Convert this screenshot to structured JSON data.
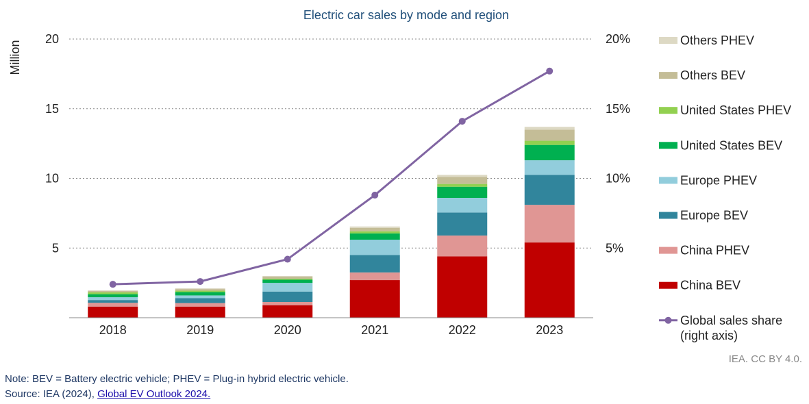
{
  "chart_data": {
    "type": "bar",
    "title": "Electric car sales by mode and region",
    "ylabel": "Million",
    "ylim": [
      0,
      20
    ],
    "y_ticks": [
      "5",
      "10",
      "15",
      "20"
    ],
    "y2_ticks": [
      "5%",
      "10%",
      "15%",
      "20%"
    ],
    "y2lim": [
      0,
      20
    ],
    "categories": [
      "2018",
      "2019",
      "2020",
      "2021",
      "2022",
      "2023"
    ],
    "stacked": true,
    "grid": "dotted horizontal",
    "legend_position": "right",
    "series": [
      {
        "name": "China BEV",
        "color": "#c00000",
        "values": [
          0.8,
          0.8,
          0.9,
          2.7,
          4.4,
          5.4
        ]
      },
      {
        "name": "China PHEV",
        "color": "#e09694",
        "values": [
          0.27,
          0.25,
          0.23,
          0.55,
          1.5,
          2.7
        ]
      },
      {
        "name": "Europe BEV",
        "color": "#31859c",
        "values": [
          0.2,
          0.35,
          0.75,
          1.25,
          1.65,
          2.15
        ]
      },
      {
        "name": "Europe PHEV",
        "color": "#92cddc",
        "values": [
          0.2,
          0.2,
          0.62,
          1.1,
          1.05,
          1.05
        ]
      },
      {
        "name": "United States BEV",
        "color": "#00b050",
        "values": [
          0.22,
          0.24,
          0.23,
          0.45,
          0.8,
          1.1
        ]
      },
      {
        "name": "United States PHEV",
        "color": "#92d050",
        "values": [
          0.13,
          0.1,
          0.07,
          0.15,
          0.2,
          0.3
        ]
      },
      {
        "name": "Others BEV",
        "color": "#c4bd97",
        "values": [
          0.1,
          0.12,
          0.15,
          0.25,
          0.5,
          0.8
        ]
      },
      {
        "name": "Others PHEV",
        "color": "#ddd9c4",
        "values": [
          0.05,
          0.05,
          0.05,
          0.1,
          0.15,
          0.2
        ]
      }
    ],
    "line_series": {
      "name": "Global sales share (right axis)",
      "legend_label_lines": [
        "Global sales share",
        "(right axis)"
      ],
      "color": "#8064a2",
      "axis": "right",
      "values": [
        2.4,
        2.6,
        4.2,
        8.8,
        14.1,
        17.7
      ]
    }
  },
  "footer": {
    "note": "Note: BEV = Battery electric vehicle; PHEV = Plug-in hybrid electric vehicle.",
    "source_prefix": "Source: IEA (2024), ",
    "source_link": "Global EV Outlook 2024.",
    "credit": "IEA. CC BY 4.0."
  }
}
